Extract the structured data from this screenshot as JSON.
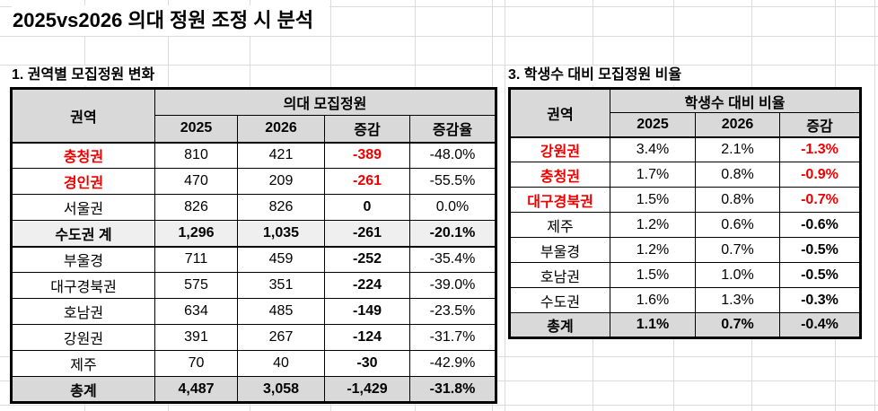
{
  "title": "2025vs2026 의대 정원 조정 시 분석",
  "sections": {
    "left": {
      "heading": "1. 권역별 모집정원 변화",
      "table": {
        "corner": "권역",
        "group": "의대 모집정원",
        "columns": [
          "2025",
          "2026",
          "증감",
          "증감율"
        ],
        "rows": [
          {
            "region": "충청권",
            "y2025": "810",
            "y2026": "421",
            "diff": "-389",
            "rate": "-48.0%",
            "emphasis": "red"
          },
          {
            "region": "경인권",
            "y2025": "470",
            "y2026": "209",
            "diff": "-261",
            "rate": "-55.5%",
            "emphasis": "red"
          },
          {
            "region": "서울권",
            "y2025": "826",
            "y2026": "826",
            "diff": "0",
            "rate": "0.0%",
            "emphasis": "normal"
          },
          {
            "region": "수도권 계",
            "y2025": "1,296",
            "y2026": "1,035",
            "diff": "-261",
            "rate": "-20.1%",
            "emphasis": "subtotal"
          },
          {
            "region": "부울경",
            "y2025": "711",
            "y2026": "459",
            "diff": "-252",
            "rate": "-35.4%",
            "emphasis": "normal"
          },
          {
            "region": "대구경북권",
            "y2025": "575",
            "y2026": "351",
            "diff": "-224",
            "rate": "-39.0%",
            "emphasis": "normal"
          },
          {
            "region": "호남권",
            "y2025": "634",
            "y2026": "485",
            "diff": "-149",
            "rate": "-23.5%",
            "emphasis": "normal"
          },
          {
            "region": "강원권",
            "y2025": "391",
            "y2026": "267",
            "diff": "-124",
            "rate": "-31.7%",
            "emphasis": "normal"
          },
          {
            "region": "제주",
            "y2025": "70",
            "y2026": "40",
            "diff": "-30",
            "rate": "-42.9%",
            "emphasis": "normal"
          },
          {
            "region": "총계",
            "y2025": "4,487",
            "y2026": "3,058",
            "diff": "-1,429",
            "rate": "-31.8%",
            "emphasis": "total"
          }
        ]
      }
    },
    "right": {
      "heading": "3. 학생수 대비 모집정원 비율",
      "table": {
        "corner": "권역",
        "group": "학생수 대비 비율",
        "columns": [
          "2025",
          "2026",
          "증감"
        ],
        "rows": [
          {
            "region": "강원권",
            "y2025": "3.4%",
            "y2026": "2.1%",
            "diff": "-1.3%",
            "emphasis": "red"
          },
          {
            "region": "충청권",
            "y2025": "1.7%",
            "y2026": "0.8%",
            "diff": "-0.9%",
            "emphasis": "red"
          },
          {
            "region": "대구경북권",
            "y2025": "1.5%",
            "y2026": "0.8%",
            "diff": "-0.7%",
            "emphasis": "red"
          },
          {
            "region": "제주",
            "y2025": "1.2%",
            "y2026": "0.6%",
            "diff": "-0.6%",
            "emphasis": "normal"
          },
          {
            "region": "부울경",
            "y2025": "1.2%",
            "y2026": "0.7%",
            "diff": "-0.5%",
            "emphasis": "normal"
          },
          {
            "region": "호남권",
            "y2025": "1.5%",
            "y2026": "1.0%",
            "diff": "-0.5%",
            "emphasis": "normal"
          },
          {
            "region": "수도권",
            "y2025": "1.6%",
            "y2026": "1.3%",
            "diff": "-0.3%",
            "emphasis": "normal"
          },
          {
            "region": "총계",
            "y2025": "1.1%",
            "y2026": "0.7%",
            "diff": "-0.4%",
            "emphasis": "total"
          }
        ]
      }
    }
  },
  "colors": {
    "accent_red": "#ee0000",
    "header_bg": "#d9d9d9",
    "subtotal_bg": "#efefef",
    "total_bg": "#d9d9d9",
    "border": "#000000",
    "gridline": "#dcdcdc"
  }
}
